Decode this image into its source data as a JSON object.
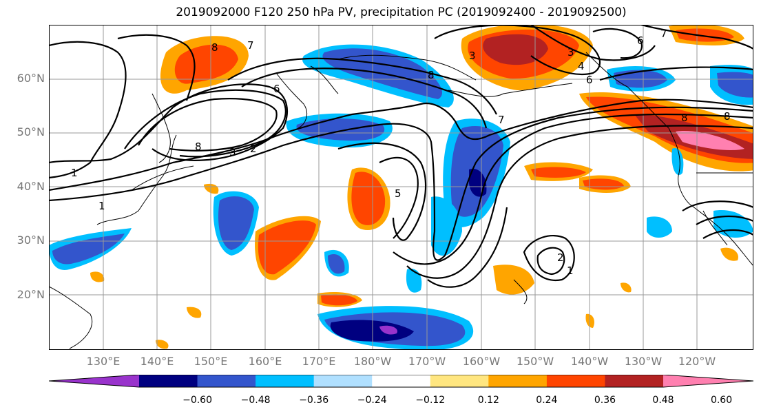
{
  "title": "2019092000 F120 250 hPa PV, precipitation PC (2019092400 - 2019092500)",
  "lat_labels": [
    "60°N",
    "50°N",
    "40°N",
    "30°N",
    "20°N"
  ],
  "lon_labels": [
    "130°E",
    "140°E",
    "150°E",
    "160°E",
    "170°E",
    "180°W",
    "170°W",
    "160°W",
    "150°W",
    "140°W",
    "130°W",
    "120°W"
  ],
  "colorbar": {
    "colors": [
      "#9933cc",
      "#000080",
      "#3355cc",
      "#00bfff",
      "#b0e0ff",
      "#ffffff",
      "#ffe680",
      "#ffa500",
      "#ff4500",
      "#b22222",
      "#ff80b0"
    ],
    "tick_labels": [
      "−0.60",
      "−0.48",
      "−0.36",
      "−0.24",
      "−0.12",
      "0.12",
      "0.24",
      "0.36",
      "0.48",
      "0.60"
    ]
  },
  "contour_labels": [
    "8",
    "7",
    "6",
    "3",
    "4",
    "8",
    "3",
    "2",
    "1",
    "1",
    "5",
    "7",
    "6",
    "8",
    "2",
    "1",
    "8",
    "3",
    "6",
    "7",
    "8"
  ]
}
